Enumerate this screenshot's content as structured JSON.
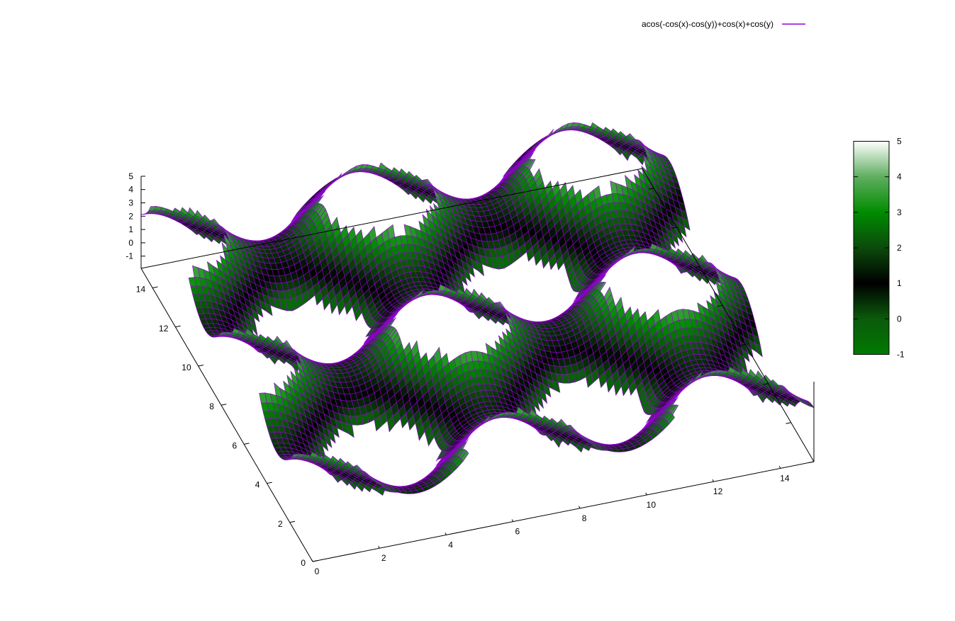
{
  "chart_data": {
    "type": "surface3d",
    "title": "",
    "legend": {
      "position": "top-right",
      "entries": [
        {
          "label": "acos(-cos(x)-cos(y))+cos(x)+cos(y)",
          "color": "#9400d3"
        }
      ]
    },
    "function": "acos(-cos(x)-cos(y))+cos(x)+cos(y)",
    "xlabel": "",
    "ylabel": "",
    "zlabel": "",
    "x_range": [
      0,
      15
    ],
    "y_range": [
      0,
      15
    ],
    "z_range": [
      -2,
      5
    ],
    "x_ticks": [
      "0",
      "2",
      "4",
      "6",
      "8",
      "10",
      "12",
      "14"
    ],
    "x_tick_values": [
      0,
      2,
      4,
      6,
      8,
      10,
      12,
      14
    ],
    "y_ticks": [
      "0",
      "2",
      "4",
      "6",
      "8",
      "10",
      "12",
      "14"
    ],
    "y_tick_values": [
      0,
      2,
      4,
      6,
      8,
      10,
      12,
      14
    ],
    "z_ticks": [
      "-1",
      "0",
      "1",
      "2",
      "3",
      "4",
      "5"
    ],
    "z_tick_values": [
      -1,
      0,
      1,
      2,
      3,
      4,
      5
    ],
    "colorbox": {
      "range": [
        -1,
        5
      ],
      "ticks": [
        "-1",
        "0",
        "1",
        "2",
        "3",
        "4",
        "5"
      ],
      "tick_values": [
        -1,
        0,
        1,
        2,
        3,
        4,
        5
      ],
      "palette": [
        {
          "value": -1,
          "color": "#007a00"
        },
        {
          "value": 0,
          "color": "#0b5a0b"
        },
        {
          "value": 1,
          "color": "#000000"
        },
        {
          "value": 2,
          "color": "#0b4a0b"
        },
        {
          "value": 3,
          "color": "#008c00"
        },
        {
          "value": 4,
          "color": "#5fae5f"
        },
        {
          "value": 5,
          "color": "#ffffff"
        }
      ]
    },
    "mesh_line_color": "#9400d3",
    "grid": false
  }
}
